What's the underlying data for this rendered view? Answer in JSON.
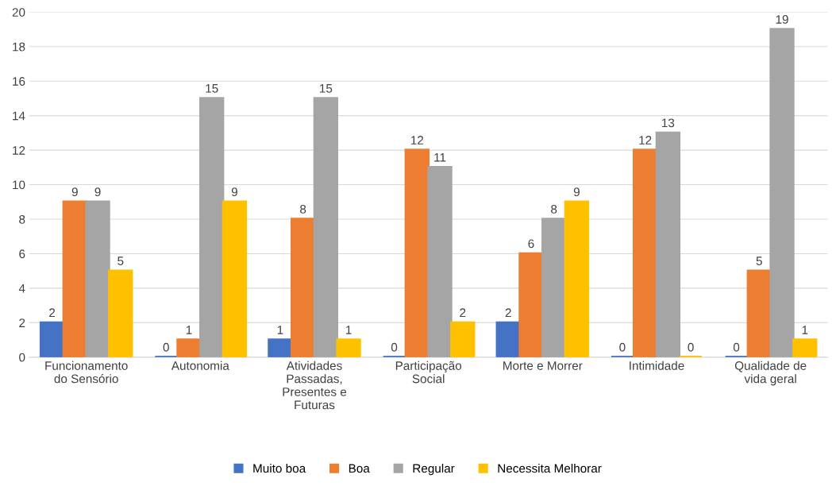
{
  "chart_data": {
    "type": "bar",
    "categories": [
      "Funcionamento\ndo Sensório",
      "Autonomia",
      "Atividades\nPassadas,\nPresentes e\nFuturas",
      "Participação\nSocial",
      "Morte e Morrer",
      "Intimidade",
      "Qualidade de\nvida geral"
    ],
    "series": [
      {
        "name": "Muito boa",
        "color": "#4472c4",
        "values": [
          2,
          0,
          1,
          0,
          2,
          0,
          0
        ]
      },
      {
        "name": "Boa",
        "color": "#ed7d31",
        "values": [
          9,
          1,
          8,
          12,
          6,
          12,
          5
        ]
      },
      {
        "name": "Regular",
        "color": "#a5a5a5",
        "values": [
          9,
          15,
          15,
          11,
          8,
          13,
          19
        ]
      },
      {
        "name": "Necessita Melhorar",
        "color": "#ffc000",
        "values": [
          5,
          9,
          1,
          2,
          9,
          0,
          1
        ]
      }
    ],
    "ylim": [
      0,
      20
    ],
    "yticks": [
      0,
      2,
      4,
      6,
      8,
      10,
      12,
      14,
      16,
      18,
      20
    ],
    "grid": "y",
    "legend": "bottom",
    "data_labels": true
  }
}
